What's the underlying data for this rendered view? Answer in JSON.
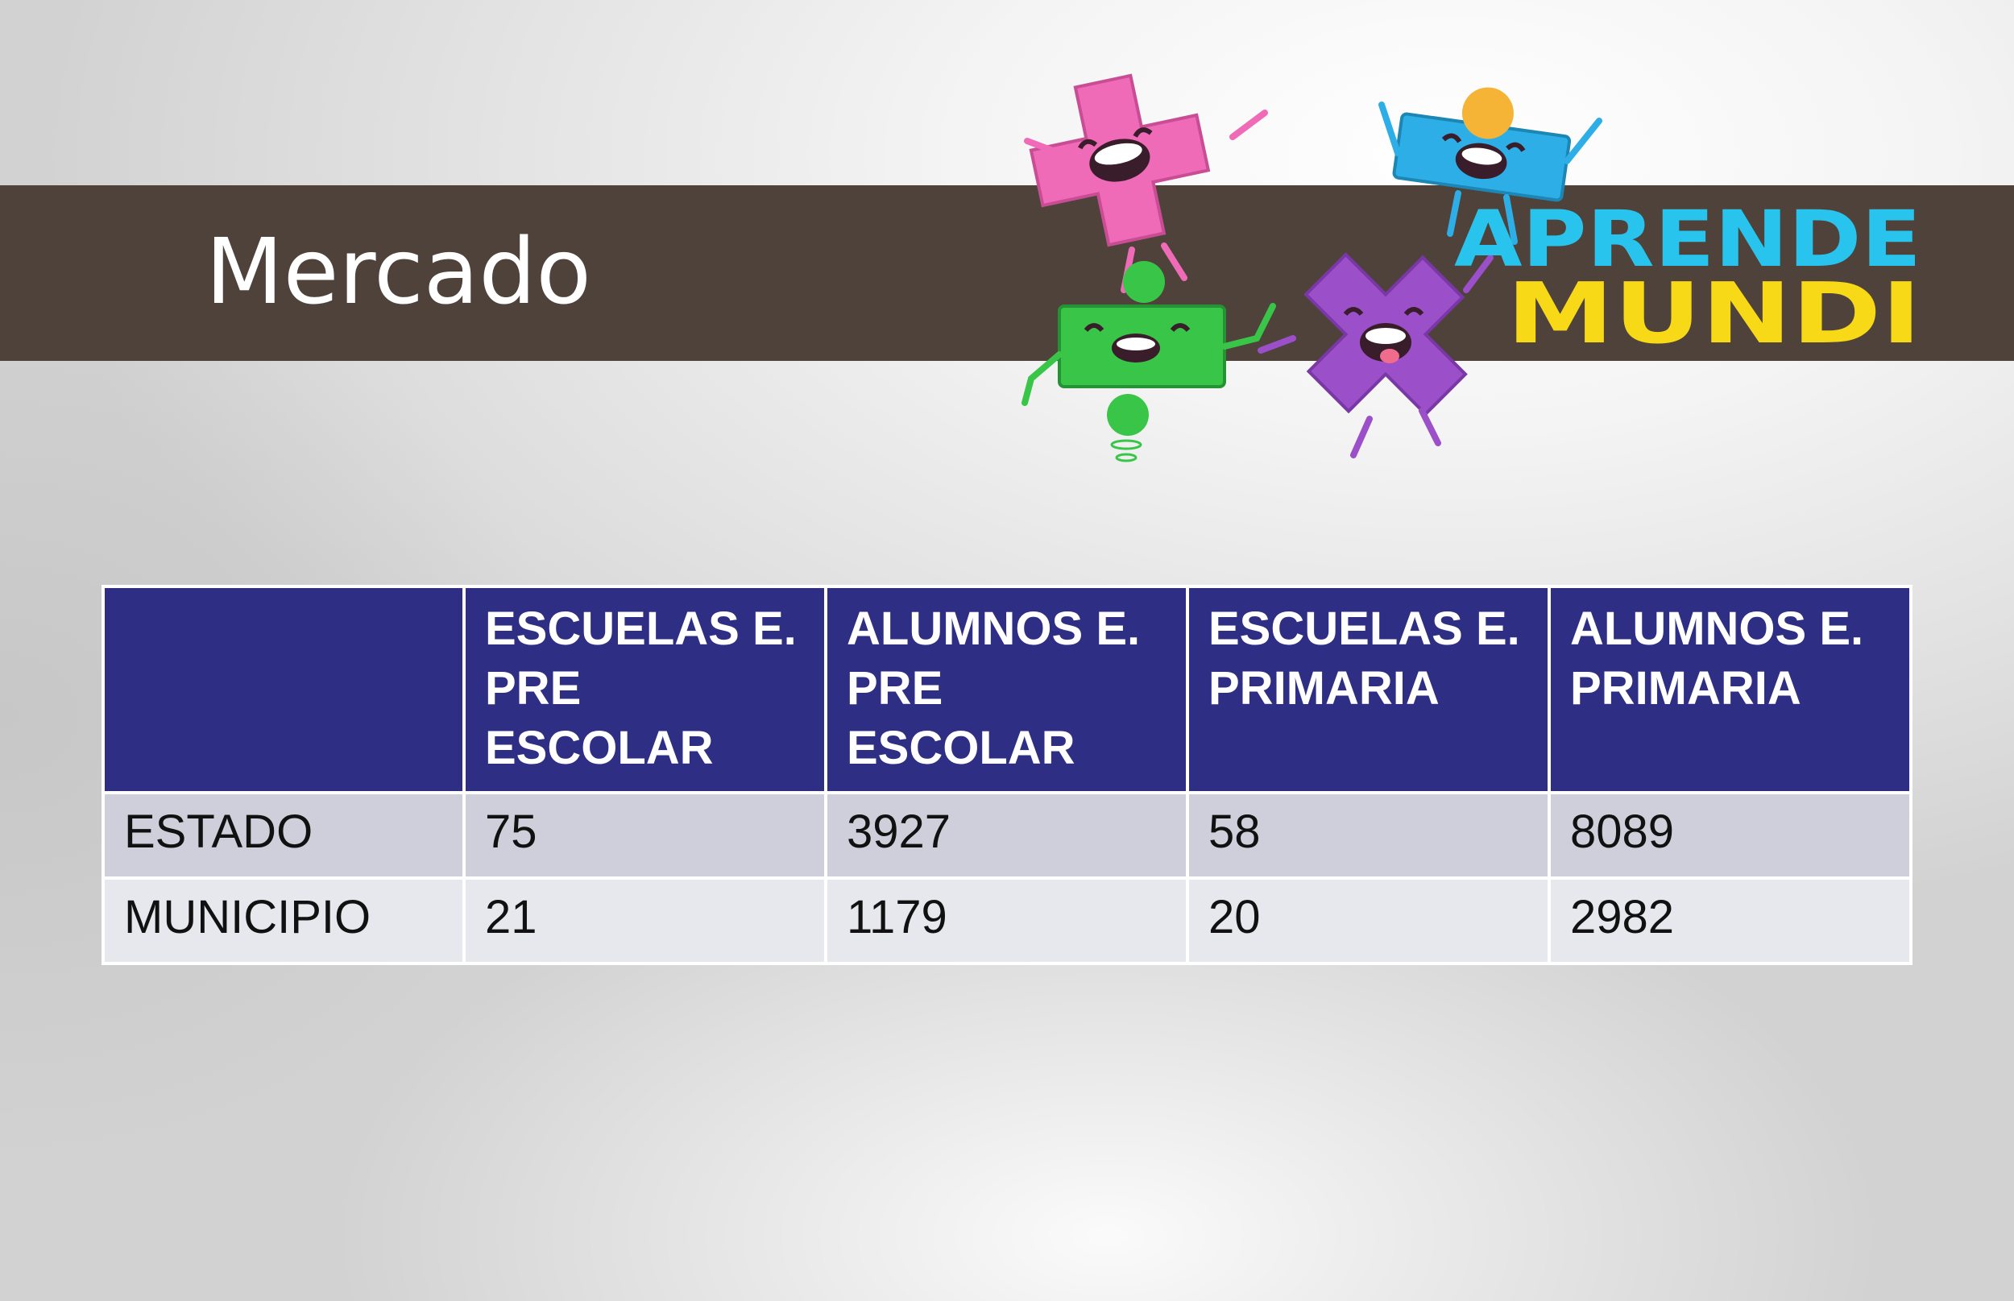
{
  "slide": {
    "title": "Mercado"
  },
  "logo": {
    "line1": "APRENDE",
    "line2": "MUNDI",
    "colors": {
      "line1": "#29c4ee",
      "line2": "#f7d918",
      "plus_pink": "#f06bb7",
      "minus_blue": "#2eaee6",
      "divide_green": "#39c648",
      "times_purple": "#9b4fc9"
    }
  },
  "table": {
    "headers": [
      "",
      "ESCUELAS E. PRE ESCOLAR",
      "ALUMNOS E. PRE ESCOLAR",
      "ESCUELAS E. PRIMARIA",
      "ALUMNOS E. PRIMARIA"
    ],
    "rows": [
      [
        "ESTADO",
        "75",
        "3927",
        "58",
        "8089"
      ],
      [
        "MUNICIPIO",
        "21",
        "1179",
        "20",
        "2982"
      ]
    ]
  },
  "colors": {
    "title_band": "#4f423b",
    "table_header": "#2e2e85",
    "row_odd": "#cfcfdc",
    "row_even": "#e7e7ee"
  }
}
